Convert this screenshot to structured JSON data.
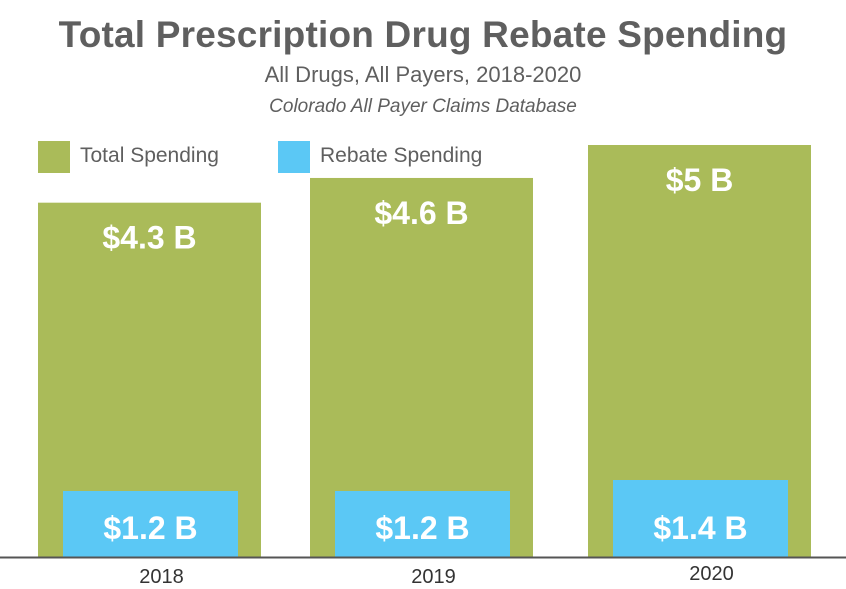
{
  "colors": {
    "total": "#aabb59",
    "rebate": "#5bc8f5",
    "title": "#5f5f5f",
    "axis": "#555555"
  },
  "chart_data": {
    "type": "bar",
    "title": "Total Prescription Drug Rebate Spending",
    "subtitle": "All Drugs, All Payers, 2018-2020",
    "source": "Colorado All Payer Claims Database",
    "categories": [
      "2018",
      "2019",
      "2020"
    ],
    "series": [
      {
        "name": "Total Spending",
        "color": "#aabb59",
        "values": [
          4.3,
          4.6,
          5.0
        ],
        "labels": [
          "$4.3 B",
          "$4.6 B",
          "$5 B"
        ]
      },
      {
        "name": "Rebate Spending",
        "color": "#5bc8f5",
        "values": [
          1.2,
          1.2,
          1.4
        ],
        "labels": [
          "$1.2 B",
          "$1.2 B",
          "$1.4 B"
        ]
      }
    ],
    "ylim": [
      0,
      5.0
    ],
    "grid": false,
    "legend_position": "top-left"
  }
}
